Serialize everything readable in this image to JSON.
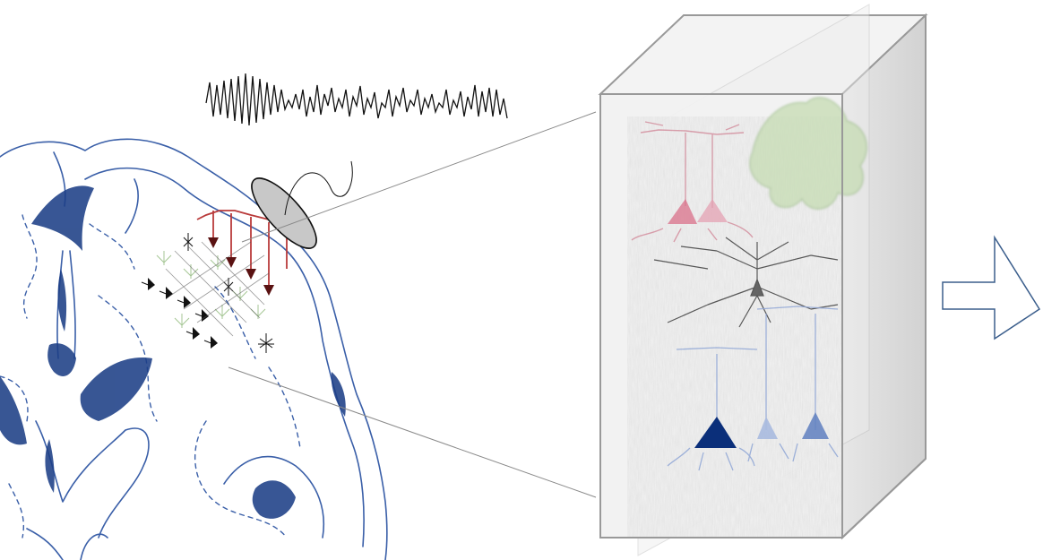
{
  "colors": {
    "brain_outline": "#3a5fa8",
    "brain_fill": "#1d3f86",
    "pyramidal_red": "#b93a3a",
    "pyramidal_pink": "#d9708a",
    "interneuron_green": "#9cc08a",
    "neuron_black": "#111111",
    "neuron_blue_dark": "#0b2f7a",
    "neuron_blue_light": "#8fa6d6",
    "eeg_trace": "#111111",
    "electrode": "#c8c8c8",
    "cube_edge": "#999999",
    "zoom_line": "#888888",
    "arrow": "#3b5e8c"
  },
  "icons": {
    "brain": "brain-section-icon",
    "electrode": "eeg-electrode-icon",
    "tissue": "cortical-tissue-cube-icon",
    "arrow": "right-arrow-icon"
  }
}
